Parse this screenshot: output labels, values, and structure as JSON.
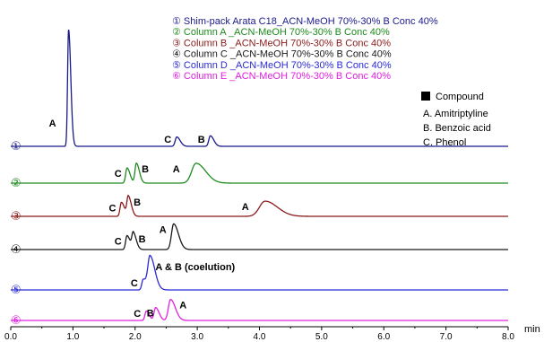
{
  "chart_data": {
    "type": "line",
    "title": "",
    "xlabel": "",
    "ylabel": "",
    "x_unit": "min",
    "xlim": [
      0.0,
      8.0
    ],
    "xticks": [
      0.0,
      1.0,
      2.0,
      3.0,
      4.0,
      5.0,
      6.0,
      7.0,
      8.0
    ],
    "xtick_labels": [
      "0.0",
      "1.0",
      "2.0",
      "3.0",
      "4.0",
      "5.0",
      "6.0",
      "7.0",
      "8.0"
    ],
    "grid": false,
    "series": [
      {
        "name": "Shim-pack Arata C18_ACN-MeOH 70%-30% B Conc 40%",
        "trace_label": "①",
        "color": "#1a1a8c",
        "peaks": [
          {
            "label": "A",
            "rt": 0.93,
            "height": 1.0,
            "width": 0.016
          },
          {
            "label": "C",
            "rt": 2.67,
            "height": 0.08,
            "width": 0.025
          },
          {
            "label": "B",
            "rt": 3.21,
            "height": 0.09,
            "width": 0.025
          }
        ]
      },
      {
        "name": "Column A _ACN-MeOH 70%-30% B Conc 40%",
        "trace_label": "②",
        "color": "#1e8a1e",
        "peaks": [
          {
            "label": "C",
            "rt": 1.87,
            "height": 0.13,
            "width": 0.022
          },
          {
            "label": "B",
            "rt": 2.02,
            "height": 0.17,
            "width": 0.022
          },
          {
            "label": "A",
            "rt": 2.98,
            "height": 0.17,
            "width": 0.07
          }
        ]
      },
      {
        "name": "Column B _ACN-MeOH 70%-30% B Conc 40%",
        "trace_label": "③",
        "color": "#8a1a1a",
        "peaks": [
          {
            "label": "C",
            "rt": 1.78,
            "height": 0.12,
            "width": 0.022
          },
          {
            "label": "B",
            "rt": 1.89,
            "height": 0.17,
            "width": 0.022
          },
          {
            "label": "A",
            "rt": 4.09,
            "height": 0.13,
            "width": 0.09
          }
        ]
      },
      {
        "name": "Column C _ACN-MeOH 70%-30% B Conc 40%",
        "trace_label": "④",
        "color": "#1a1a1a",
        "peaks": [
          {
            "label": "C",
            "rt": 1.87,
            "height": 0.12,
            "width": 0.022
          },
          {
            "label": "B",
            "rt": 1.97,
            "height": 0.14,
            "width": 0.022
          },
          {
            "label": "A",
            "rt": 2.62,
            "height": 0.22,
            "width": 0.035
          }
        ]
      },
      {
        "name": "Column D _ACN-MeOH 70%-30% B Conc 40%",
        "trace_label": "⑤",
        "color": "#2a2ad6",
        "peaks": [
          {
            "label": "C",
            "rt": 2.13,
            "height": 0.09,
            "width": 0.022
          },
          {
            "label": "A & B (coelution)",
            "rt": 2.24,
            "height": 0.29,
            "width": 0.035
          }
        ]
      },
      {
        "name": "Column E _ACN-MeOH 70%-30% B Conc 40%",
        "trace_label": "⑥",
        "color": "#e020e0",
        "peaks": [
          {
            "label": "C",
            "rt": 2.18,
            "height": 0.08,
            "width": 0.022
          },
          {
            "label": "B",
            "rt": 2.33,
            "height": 0.11,
            "width": 0.025
          },
          {
            "label": "A",
            "rt": 2.57,
            "height": 0.18,
            "width": 0.035
          }
        ]
      }
    ],
    "compound_legend": {
      "title": "Compound",
      "items": [
        "A. Amitriptyline",
        "B. Benzoic acid",
        "C. Phenol"
      ]
    }
  }
}
